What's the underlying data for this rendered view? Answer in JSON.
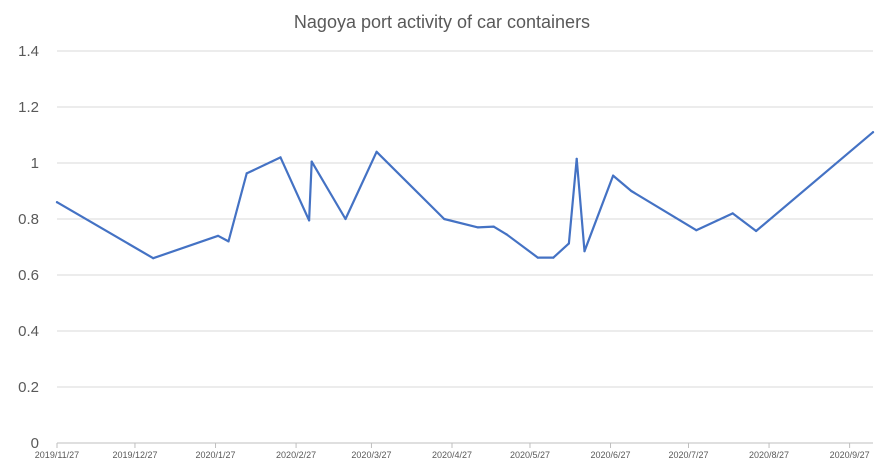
{
  "chart_data": {
    "type": "line",
    "title": "Nagoya port activity of car containers",
    "xlabel": "",
    "ylabel": "",
    "ylim": [
      0,
      1.4
    ],
    "yticks": [
      "0",
      "0.2",
      "0.4",
      "0.6",
      "0.8",
      "1",
      "1.2",
      "1.4"
    ],
    "xlim": [
      "2019-11-27",
      "2020-10-06"
    ],
    "xticks": [
      {
        "date": "2019-11-27",
        "label": "2019/11/27"
      },
      {
        "date": "2019-12-27",
        "label": "2019/12/27"
      },
      {
        "date": "2020-01-27",
        "label": "2020/1/27"
      },
      {
        "date": "2020-02-27",
        "label": "2020/2/27"
      },
      {
        "date": "2020-03-27",
        "label": "2020/3/27"
      },
      {
        "date": "2020-04-27",
        "label": "2020/4/27"
      },
      {
        "date": "2020-05-27",
        "label": "2020/5/27"
      },
      {
        "date": "2020-06-27",
        "label": "2020/6/27"
      },
      {
        "date": "2020-07-27",
        "label": "2020/7/27"
      },
      {
        "date": "2020-08-27",
        "label": "2020/8/27"
      },
      {
        "date": "2020-09-27",
        "label": "2020/9/27"
      }
    ],
    "grid": true,
    "legend": "none",
    "series": [
      {
        "color": "#4472c4",
        "x": [
          "2019-11-27",
          "2020-01-03",
          "2020-01-28",
          "2020-02-01",
          "2020-02-08",
          "2020-02-21",
          "2020-03-03",
          "2020-03-04",
          "2020-03-17",
          "2020-03-29",
          "2020-04-24",
          "2020-05-07",
          "2020-05-13",
          "2020-05-18",
          "2020-05-30",
          "2020-06-05",
          "2020-06-11",
          "2020-06-14",
          "2020-06-17",
          "2020-06-28",
          "2020-07-05",
          "2020-07-30",
          "2020-08-13",
          "2020-08-22",
          "2020-10-06"
        ],
        "y": [
          0.86,
          0.66,
          0.74,
          0.72,
          0.963,
          1.02,
          0.795,
          1.005,
          0.8,
          1.04,
          0.8,
          0.77,
          0.773,
          0.745,
          0.662,
          0.662,
          0.713,
          1.015,
          0.685,
          0.955,
          0.9,
          0.76,
          0.82,
          0.757,
          1.11
        ]
      }
    ]
  }
}
